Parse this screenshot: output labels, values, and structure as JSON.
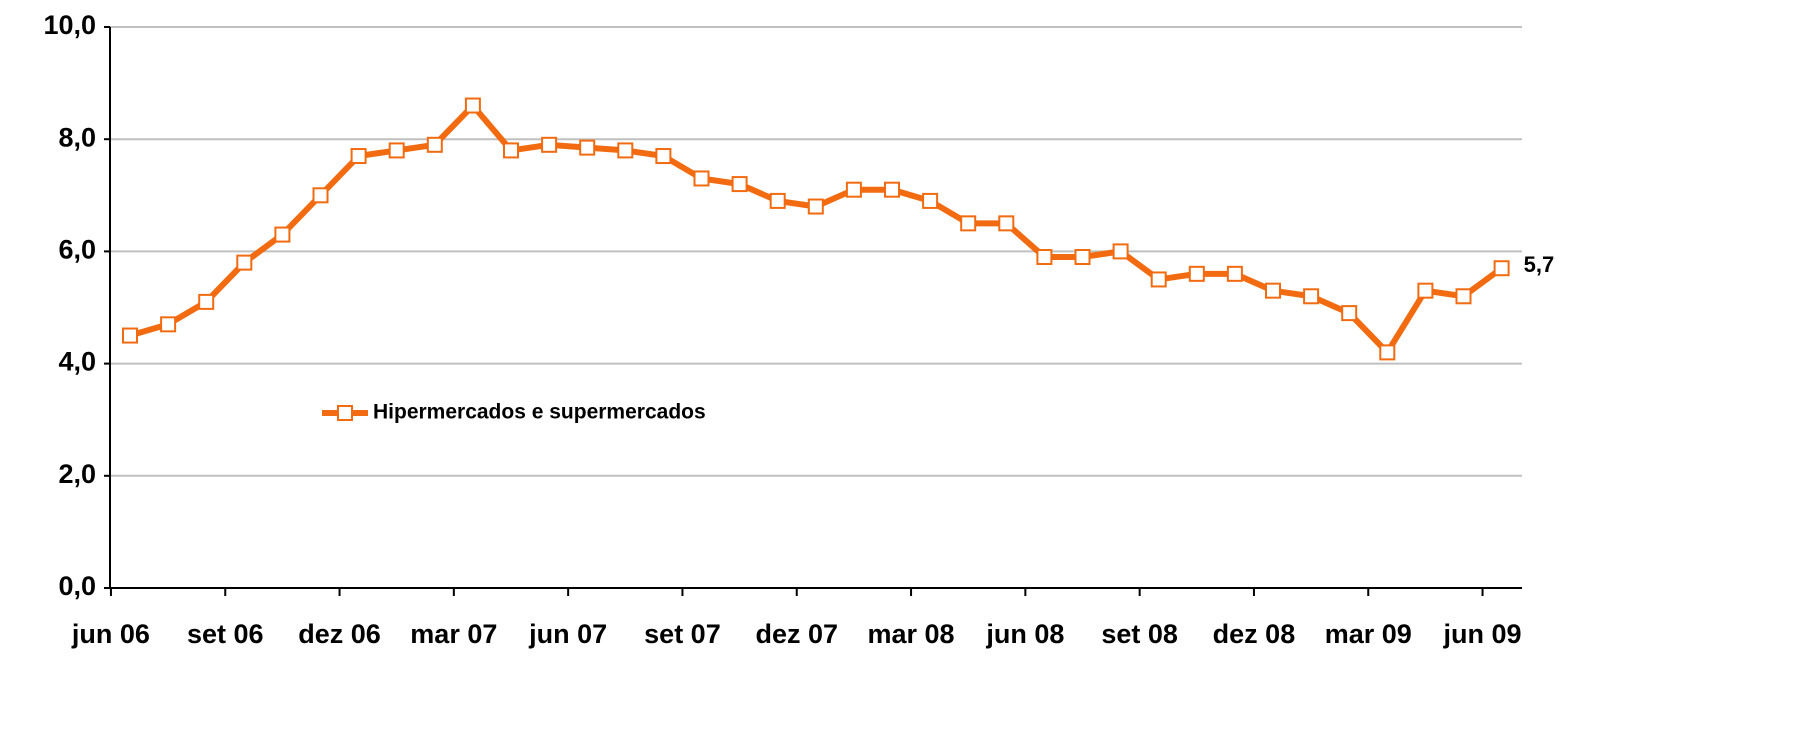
{
  "chart_data": {
    "type": "line",
    "categories": [
      "jun 06",
      null,
      null,
      "set 06",
      null,
      null,
      "dez 06",
      null,
      null,
      "mar 07",
      null,
      null,
      "jun 07",
      null,
      null,
      "set 07",
      null,
      null,
      "dez 07",
      null,
      null,
      "mar 08",
      null,
      null,
      "jun 08",
      null,
      null,
      "set 08",
      null,
      null,
      "dez 08",
      null,
      null,
      "mar 09",
      null,
      null,
      "jun 09"
    ],
    "series": [
      {
        "name": "Hipermercados e supermercados",
        "color": "#f26b10",
        "values": [
          4.5,
          4.7,
          5.1,
          5.8,
          6.3,
          7.0,
          7.7,
          7.8,
          7.9,
          8.6,
          7.8,
          7.9,
          7.85,
          7.8,
          7.7,
          7.3,
          7.2,
          6.9,
          6.8,
          7.1,
          7.1,
          6.9,
          6.5,
          6.5,
          5.9,
          5.9,
          6.0,
          5.5,
          5.6,
          5.6,
          5.3,
          5.2,
          4.9,
          4.2,
          5.3,
          5.2,
          5.7
        ],
        "value_labels": [
          null,
          null,
          null,
          null,
          null,
          null,
          null,
          null,
          null,
          null,
          null,
          null,
          null,
          null,
          null,
          null,
          null,
          null,
          null,
          null,
          null,
          null,
          null,
          null,
          null,
          null,
          null,
          null,
          null,
          null,
          null,
          null,
          null,
          null,
          null,
          null,
          "5,7"
        ]
      }
    ],
    "ylim": [
      0,
      10
    ],
    "yticks": [
      {
        "value": 0,
        "label": "0,0"
      },
      {
        "value": 2,
        "label": "2,0"
      },
      {
        "value": 4,
        "label": "4,0"
      },
      {
        "value": 6,
        "label": "6,0"
      },
      {
        "value": 8,
        "label": "8,0"
      },
      {
        "value": 10,
        "label": "10,0"
      }
    ],
    "grid": true,
    "legend": "middle-left"
  }
}
